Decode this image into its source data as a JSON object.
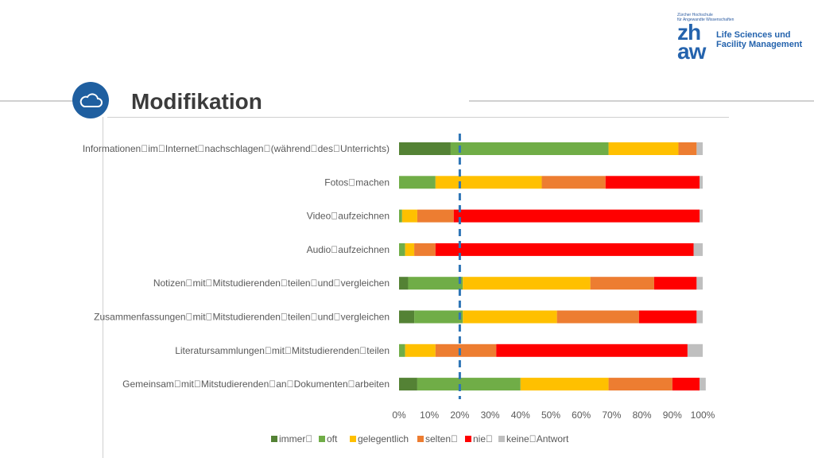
{
  "header": {
    "title": "Modifikation",
    "icon": "cloud-icon",
    "logo": {
      "small_text_1": "Zürcher Hochschule",
      "small_text_2": "für Angewandte Wissenschaften",
      "mark_line_1": "zh",
      "mark_line_2": "aw",
      "department_line_1": "Life Sciences und",
      "department_line_2": "Facility Management"
    }
  },
  "colors": {
    "immer": "#548235",
    "oft": "#70ad47",
    "gelegentlich": "#ffc000",
    "selten": "#ed7d31",
    "nie": "#ff0000",
    "keine_antwort": "#bfbfbf",
    "reference_line": "#2e75b6",
    "accent": "#1f5fa0"
  },
  "chart_data": {
    "type": "bar",
    "orientation": "horizontal",
    "stacked": "percent",
    "categories": [
      "Informationen\u0000im\u0000Internet\u0000nachschlagen\u0000(während\u0000des\u0000Unterrichts)",
      "Fotos\u0000machen",
      "Video\u0000aufzeichnen",
      "Audio\u0000aufzeichnen",
      "Notizen\u0000mit\u0000Mitstudierenden\u0000teilen\u0000und\u0000vergleichen",
      "Zusammenfassungen\u0000mit\u0000Mitstudierenden\u0000teilen\u0000und\u0000vergleichen",
      "Literatursammlungen\u0000mit\u0000Mitstudierenden\u0000teilen",
      "Gemeinsam\u0000mit\u0000Mitstudierenden\u0000an\u0000Dokumenten\u0000arbeiten"
    ],
    "series": [
      {
        "name": "immer\u0000",
        "color_key": "immer",
        "values": [
          17,
          0,
          0,
          0,
          3,
          5,
          0,
          6
        ]
      },
      {
        "name": "oft",
        "color_key": "oft",
        "values": [
          52,
          12,
          1,
          2,
          18,
          16,
          2,
          34
        ]
      },
      {
        "name": "gelegentlich",
        "color_key": "gelegentlich",
        "values": [
          23,
          35,
          5,
          3,
          42,
          31,
          10,
          29
        ]
      },
      {
        "name": "selten\u0000",
        "color_key": "selten",
        "values": [
          6,
          21,
          12,
          7,
          21,
          27,
          20,
          21
        ]
      },
      {
        "name": "nie\u0000",
        "color_key": "nie",
        "values": [
          0,
          31,
          81,
          85,
          14,
          19,
          63,
          9
        ]
      },
      {
        "name": "keine\u0000Antwort",
        "color_key": "keine_antwort",
        "values": [
          2,
          1,
          1,
          3,
          2,
          2,
          5,
          2
        ]
      }
    ],
    "x_ticks": [
      "0%",
      "10%",
      "20%",
      "30%",
      "40%",
      "50%",
      "60%",
      "70%",
      "80%",
      "90%",
      "100%"
    ],
    "xlim": [
      0,
      100
    ],
    "reference_line_value": 20,
    "grid": false,
    "legend_position": "bottom"
  }
}
